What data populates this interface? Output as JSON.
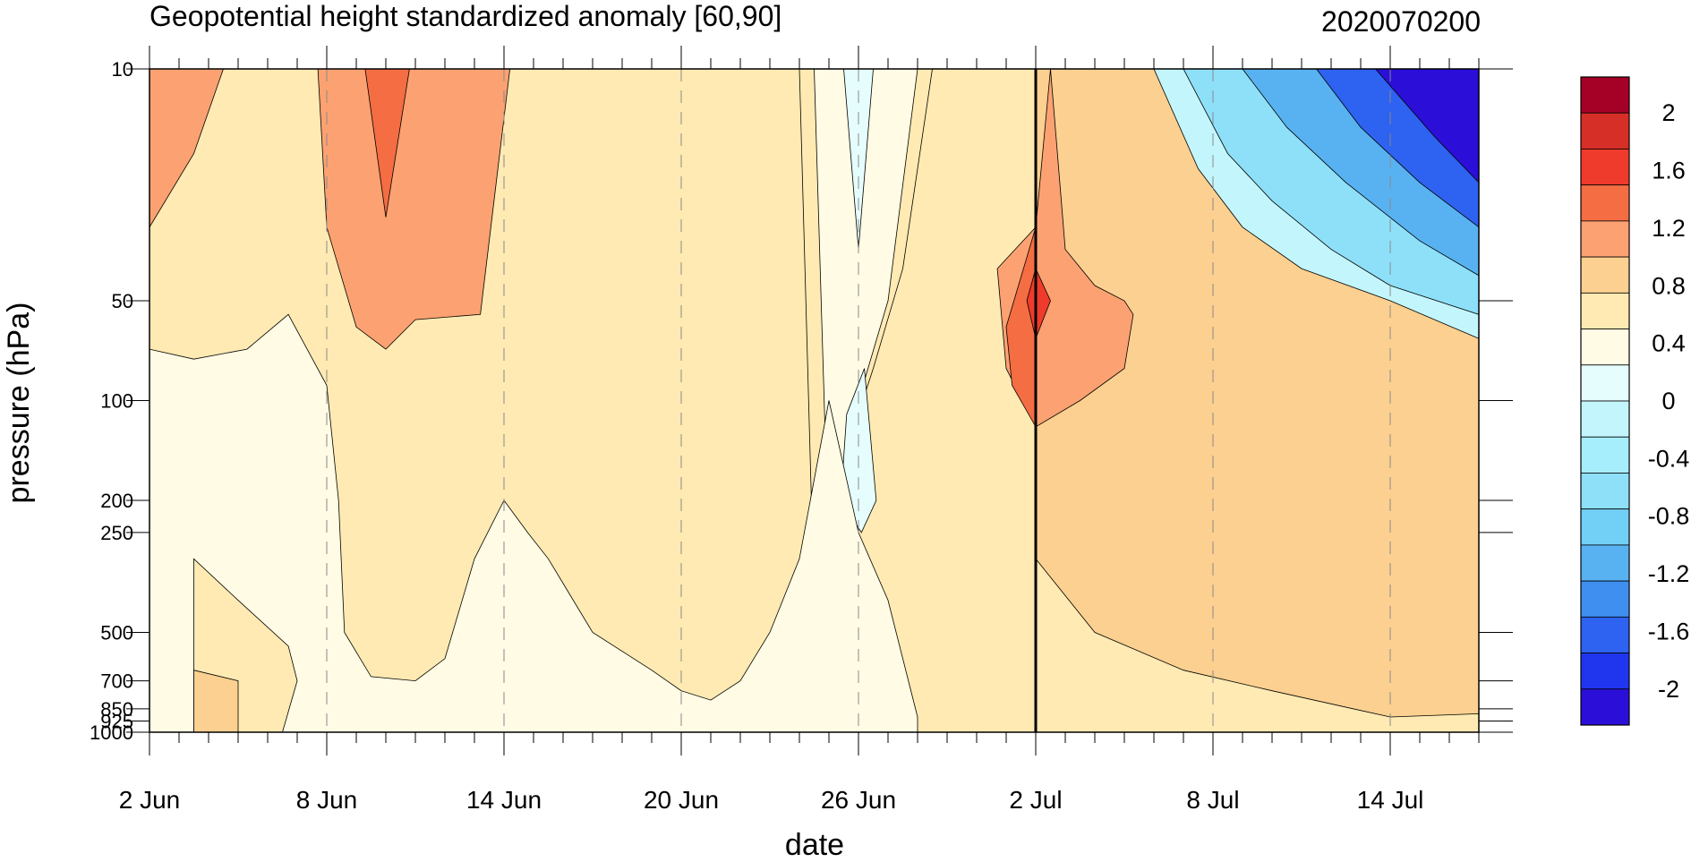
{
  "chart_data": {
    "type": "heatmap",
    "title": "Geopotential height standardized anomaly [60,90]",
    "date_label": "2020070200",
    "xlabel": "date",
    "ylabel": "pressure (hPa)",
    "x_ticks": [
      {
        "day": 0,
        "label": "2 Jun"
      },
      {
        "day": 6,
        "label": "8 Jun"
      },
      {
        "day": 12,
        "label": "14 Jun"
      },
      {
        "day": 18,
        "label": "20 Jun"
      },
      {
        "day": 24,
        "label": "26 Jun"
      },
      {
        "day": 30,
        "label": "2 Jul"
      },
      {
        "day": 36,
        "label": "8 Jul"
      },
      {
        "day": 42,
        "label": "14 Jul"
      }
    ],
    "x_range_days": [
      0,
      45
    ],
    "current_day": 30,
    "y_ticks": [
      {
        "hPa": 10,
        "label": "10"
      },
      {
        "hPa": 50,
        "label": "50"
      },
      {
        "hPa": 100,
        "label": "100"
      },
      {
        "hPa": 200,
        "label": "200"
      },
      {
        "hPa": 250,
        "label": "250"
      },
      {
        "hPa": 500,
        "label": "500"
      },
      {
        "hPa": 700,
        "label": "700"
      },
      {
        "hPa": 850,
        "label": "850"
      },
      {
        "hPa": 925,
        "label": "925"
      },
      {
        "hPa": 1000,
        "label": "1000"
      }
    ],
    "y_scale": "log",
    "y_range": [
      1000,
      10
    ],
    "colorbar": {
      "labels": [
        "2",
        "1.6",
        "1.2",
        "0.8",
        "0.4",
        "0",
        "-0.4",
        "-0.8",
        "-1.2",
        "-1.6",
        "-2"
      ],
      "colors": [
        "#a50026",
        "#d62f27",
        "#ef3b2c",
        "#f46d43",
        "#fca272",
        "#fcd090",
        "#feeab2",
        "#fffbe4",
        "#e6fdfd",
        "#c3f6fc",
        "#a6eefb",
        "#8ee0f9",
        "#72cff5",
        "#58b2f1",
        "#3f8ff0",
        "#2e62f0",
        "#1f36ee",
        "#2b0fd8"
      ]
    },
    "regions": [
      {
        "level": "0.8",
        "color": "#fca272",
        "points": [
          [
            0,
            10
          ],
          [
            2.5,
            10
          ],
          [
            1.5,
            18
          ],
          [
            0,
            30
          ]
        ]
      },
      {
        "level": "0.8",
        "color": "#fca272",
        "points": [
          [
            5.7,
            10
          ],
          [
            12.2,
            10
          ],
          [
            11.2,
            55
          ],
          [
            9,
            57
          ],
          [
            8,
            70
          ],
          [
            7,
            60
          ],
          [
            6,
            30
          ]
        ]
      },
      {
        "level": "1.2",
        "color": "#f46d43",
        "points": [
          [
            7.3,
            10
          ],
          [
            8.8,
            10
          ],
          [
            8,
            28
          ]
        ]
      },
      {
        "level": "0.8",
        "color": "#fca272",
        "points": [
          [
            28.7,
            40
          ],
          [
            30,
            30
          ],
          [
            30.5,
            10
          ],
          [
            31,
            35
          ],
          [
            32,
            45
          ],
          [
            33,
            50
          ],
          [
            33.3,
            55
          ],
          [
            33,
            80
          ],
          [
            31.5,
            100
          ],
          [
            30,
            120
          ],
          [
            29,
            80
          ]
        ]
      },
      {
        "level": "1.2",
        "color": "#f46d43",
        "points": [
          [
            29,
            60
          ],
          [
            30,
            30
          ],
          [
            30,
            120
          ],
          [
            29.2,
            90
          ]
        ]
      },
      {
        "level": "1.6",
        "color": "#ef3b2c",
        "points": [
          [
            29.7,
            50
          ],
          [
            30,
            40
          ],
          [
            30.5,
            50
          ],
          [
            30,
            65
          ]
        ]
      },
      {
        "level": "0.4",
        "color": "#feeab2",
        "points": [
          [
            22,
            10
          ],
          [
            26.5,
            10
          ],
          [
            25.5,
            40
          ],
          [
            24.5,
            80
          ],
          [
            23.5,
            150
          ],
          [
            22.5,
            400
          ]
        ]
      },
      {
        "level": "0",
        "color": "#fffbe4",
        "points": [
          [
            22.5,
            10
          ],
          [
            26,
            10
          ],
          [
            25,
            50
          ],
          [
            24,
            100
          ],
          [
            23,
            300
          ]
        ]
      },
      {
        "level": "-0.4",
        "color": "#e6fdfd",
        "points": [
          [
            23.5,
            10
          ],
          [
            24.5,
            10
          ],
          [
            24,
            35
          ]
        ]
      },
      {
        "level": "-0.4",
        "color": "#e6fdfd",
        "points": [
          [
            23.6,
            110
          ],
          [
            24.2,
            80
          ],
          [
            24.6,
            200
          ],
          [
            24.1,
            250
          ],
          [
            23.4,
            200
          ]
        ]
      },
      {
        "level": "-0.4",
        "color": "#e6fdfd",
        "points": [
          [
            2.7,
            100
          ],
          [
            3.7,
            85
          ],
          [
            5,
            100
          ],
          [
            5,
            200
          ],
          [
            4.2,
            220
          ],
          [
            3.3,
            200
          ]
        ]
      },
      {
        "level": "-0.4",
        "color": "#e6fdfd",
        "points": [
          [
            12,
            1000
          ],
          [
            14,
            800
          ],
          [
            18,
            950
          ],
          [
            24,
            850
          ],
          [
            25,
            1000
          ]
        ]
      },
      {
        "level": "0",
        "color": "#fffbe4",
        "points": [
          [
            0,
            70
          ],
          [
            1.5,
            75
          ],
          [
            3.3,
            70
          ],
          [
            4.7,
            55
          ],
          [
            6,
            90
          ],
          [
            6.4,
            200
          ],
          [
            6.6,
            500
          ],
          [
            7.5,
            680
          ],
          [
            9,
            700
          ],
          [
            10,
            600
          ],
          [
            11,
            300
          ],
          [
            12,
            200
          ],
          [
            12.8,
            250
          ],
          [
            13.5,
            300
          ],
          [
            15,
            500
          ],
          [
            17,
            650
          ],
          [
            18,
            750
          ],
          [
            19,
            800
          ],
          [
            20,
            700
          ],
          [
            21,
            500
          ],
          [
            22,
            300
          ],
          [
            23,
            100
          ],
          [
            24,
            250
          ],
          [
            25,
            400
          ],
          [
            26,
            900
          ],
          [
            26,
            1000
          ],
          [
            0,
            1000
          ]
        ]
      },
      {
        "level": "0.4",
        "color": "#feeab2",
        "points": [
          [
            1.5,
            300
          ],
          [
            3,
            400
          ],
          [
            4.7,
            550
          ],
          [
            5,
            700
          ],
          [
            4.5,
            1000
          ],
          [
            1.5,
            1000
          ]
        ]
      },
      {
        "level": "0.8",
        "color": "#fcd090",
        "points": [
          [
            1.5,
            650
          ],
          [
            3,
            700
          ],
          [
            3,
            1000
          ],
          [
            1.5,
            1000
          ]
        ]
      },
      {
        "level": "0.4",
        "color": "#feeab2",
        "points": [
          [
            30,
            300
          ],
          [
            32,
            500
          ],
          [
            35,
            650
          ],
          [
            38,
            750
          ],
          [
            42,
            900
          ],
          [
            45,
            880
          ],
          [
            45,
            1000
          ],
          [
            30,
            1000
          ]
        ]
      },
      {
        "level": "-0.4",
        "color": "#c3f6fc",
        "points": [
          [
            34,
            10
          ],
          [
            45,
            10
          ],
          [
            45,
            65
          ],
          [
            42,
            50
          ],
          [
            39,
            40
          ],
          [
            37,
            30
          ],
          [
            35.5,
            20
          ]
        ]
      },
      {
        "level": "-0.8",
        "color": "#8ee0f9",
        "points": [
          [
            35,
            10
          ],
          [
            45,
            10
          ],
          [
            45,
            55
          ],
          [
            42,
            45
          ],
          [
            40,
            35
          ],
          [
            38,
            25
          ],
          [
            36.5,
            18
          ]
        ]
      },
      {
        "level": "-1.2",
        "color": "#58b2f1",
        "points": [
          [
            37,
            10
          ],
          [
            45,
            10
          ],
          [
            45,
            42
          ],
          [
            43,
            33
          ],
          [
            40.5,
            22
          ],
          [
            38.5,
            15
          ]
        ]
      },
      {
        "level": "-1.6",
        "color": "#2e62f0",
        "points": [
          [
            39.5,
            10
          ],
          [
            45,
            10
          ],
          [
            45,
            30
          ],
          [
            43,
            22
          ],
          [
            41,
            15
          ]
        ]
      },
      {
        "level": "-2",
        "color": "#2b0fd8",
        "points": [
          [
            41.5,
            10
          ],
          [
            45,
            10
          ],
          [
            45,
            22
          ],
          [
            43.5,
            16
          ]
        ]
      }
    ]
  }
}
